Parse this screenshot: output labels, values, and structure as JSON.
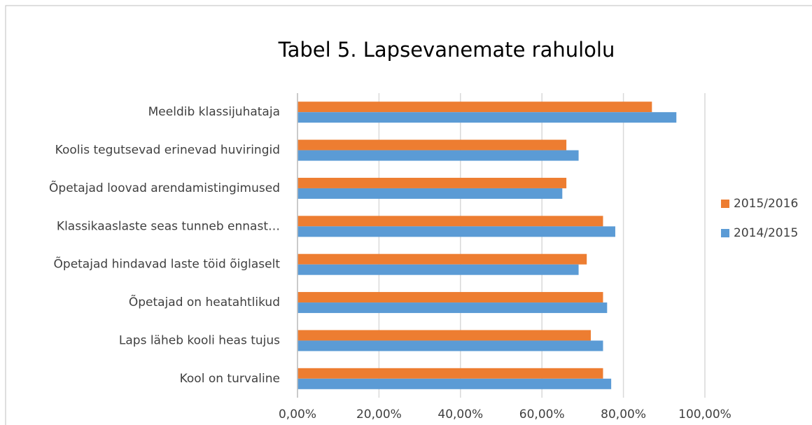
{
  "chart_data": {
    "type": "barh",
    "title": "Tabel 5. Lapsevanemate rahulolu",
    "categories": [
      "Meeldib klassijuhataja",
      "Koolis tegutsevad erinevad huviringid",
      "Õpetajad loovad arendamistingimused",
      "Klassikaaslaste seas tunneb ennast…",
      "Õpetajad hindavad laste töid õiglaselt",
      "Õpetajad on heatahtlikud",
      "Laps läheb kooli heas tujus",
      "Kool on turvaline"
    ],
    "series": [
      {
        "name": "2015/2016",
        "color": "#ed7d31",
        "values": [
          87,
          66,
          66,
          75,
          71,
          75,
          72,
          75
        ]
      },
      {
        "name": "2014/2015",
        "color": "#5b9bd5",
        "values": [
          93,
          69,
          65,
          78,
          69,
          76,
          75,
          77
        ]
      }
    ],
    "xlim": [
      0,
      100
    ],
    "xticks": [
      {
        "value": 0,
        "label": "0,00%"
      },
      {
        "value": 20,
        "label": "20,00%"
      },
      {
        "value": 40,
        "label": "40,00%"
      },
      {
        "value": 60,
        "label": "60,00%"
      },
      {
        "value": 80,
        "label": "80,00%"
      },
      {
        "value": 100,
        "label": "100,00%"
      }
    ],
    "grid": true,
    "legend": "right"
  }
}
